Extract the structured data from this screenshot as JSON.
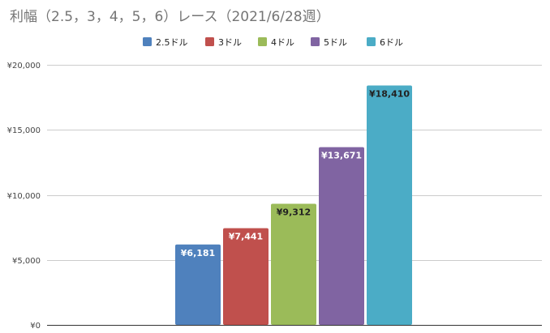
{
  "chart_data": {
    "type": "bar",
    "title": "利幅（2.5，3，4，5，6）レース（2021/6/28週）",
    "xlabel": "",
    "ylabel": "",
    "ylim": [
      0,
      20000
    ],
    "yticks": [
      "¥0",
      "¥5,000",
      "¥10,000",
      "¥15,000",
      "¥20,000"
    ],
    "ytick_values": [
      0,
      5000,
      10000,
      15000,
      20000
    ],
    "grid": true,
    "legend_position": "top",
    "series": [
      {
        "name": "2.5ドル",
        "value": 6181,
        "label": "¥6,181",
        "color": "#4f81bd",
        "label_color": "#ffffff"
      },
      {
        "name": "3ドル",
        "value": 7441,
        "label": "¥7,441",
        "color": "#c0504d",
        "label_color": "#ffffff"
      },
      {
        "name": "4ドル",
        "value": 9312,
        "label": "¥9,312",
        "color": "#9bbb59",
        "label_color": "#222222"
      },
      {
        "name": "5ドル",
        "value": 13671,
        "label": "¥13,671",
        "color": "#8064a2",
        "label_color": "#ffffff"
      },
      {
        "name": "6ドル",
        "value": 18410,
        "label": "¥18,410",
        "color": "#4bacc6",
        "label_color": "#222222"
      }
    ]
  }
}
